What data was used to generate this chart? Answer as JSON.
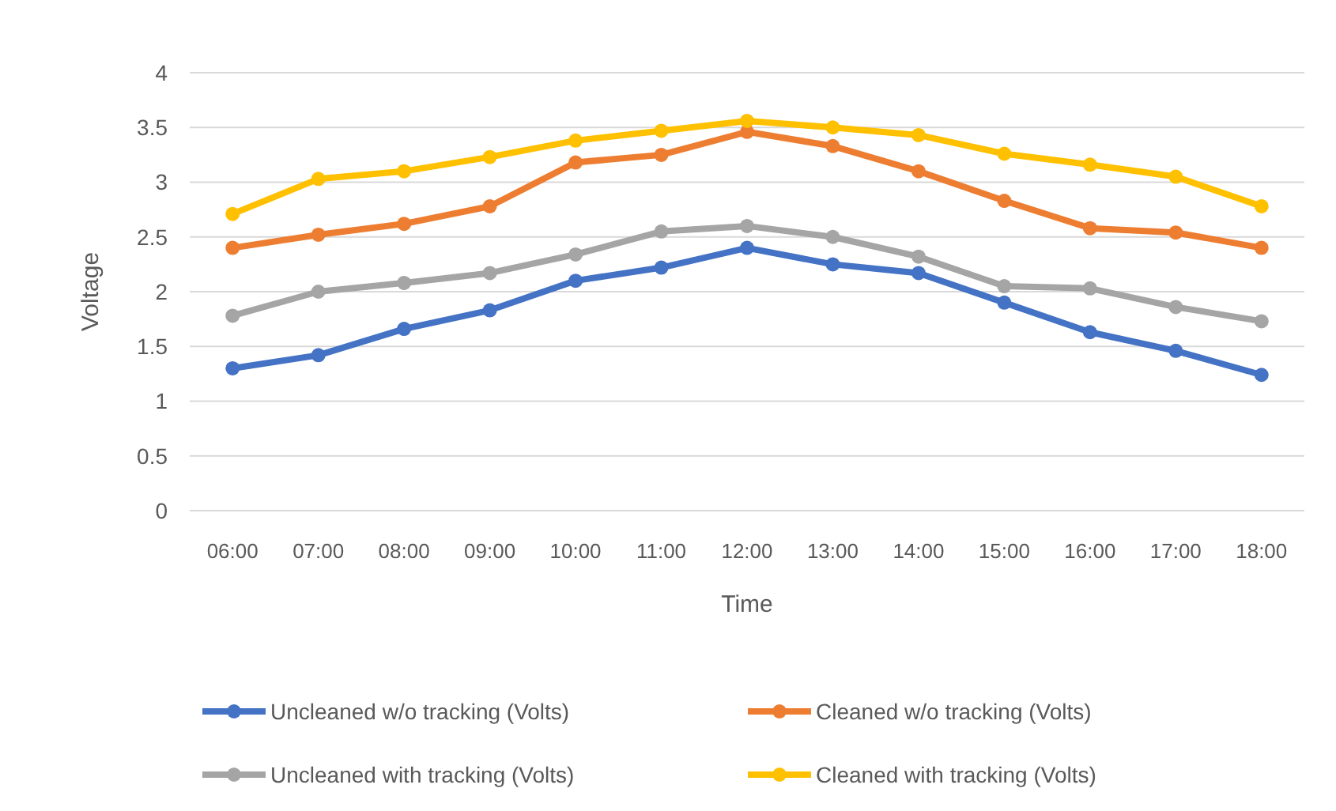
{
  "chart_data": {
    "type": "line",
    "xlabel": "Time",
    "ylabel": "Voltage",
    "categories": [
      "06:00",
      "07:00",
      "08:00",
      "09:00",
      "10:00",
      "11:00",
      "12:00",
      "13:00",
      "14:00",
      "15:00",
      "16:00",
      "17:00",
      "18:00"
    ],
    "series": [
      {
        "name": "Uncleaned w/o tracking (Volts)",
        "color": "#4472c4",
        "values": [
          1.3,
          1.42,
          1.66,
          1.83,
          2.1,
          2.22,
          2.4,
          2.25,
          2.17,
          1.9,
          1.63,
          1.46,
          1.24
        ]
      },
      {
        "name": "Cleaned w/o tracking (Volts)",
        "color": "#ed7d31",
        "values": [
          2.4,
          2.52,
          2.62,
          2.78,
          3.18,
          3.25,
          3.46,
          3.33,
          3.1,
          2.83,
          2.58,
          2.54,
          2.4
        ]
      },
      {
        "name": "Uncleaned with tracking (Volts)",
        "color": "#a5a5a5",
        "values": [
          1.78,
          2.0,
          2.08,
          2.17,
          2.34,
          2.55,
          2.6,
          2.5,
          2.32,
          2.05,
          2.03,
          1.86,
          1.73
        ]
      },
      {
        "name": "Cleaned with tracking (Volts)",
        "color": "#ffc000",
        "values": [
          2.71,
          3.03,
          3.1,
          3.23,
          3.38,
          3.47,
          3.56,
          3.5,
          3.43,
          3.26,
          3.16,
          3.05,
          2.78
        ]
      }
    ],
    "ylim": [
      0,
      4
    ],
    "yticks": [
      0,
      0.5,
      1,
      1.5,
      2,
      2.5,
      3,
      3.5,
      4
    ],
    "grid": "y",
    "legend": "bottom",
    "marker": "circle",
    "line_style": "solid"
  }
}
